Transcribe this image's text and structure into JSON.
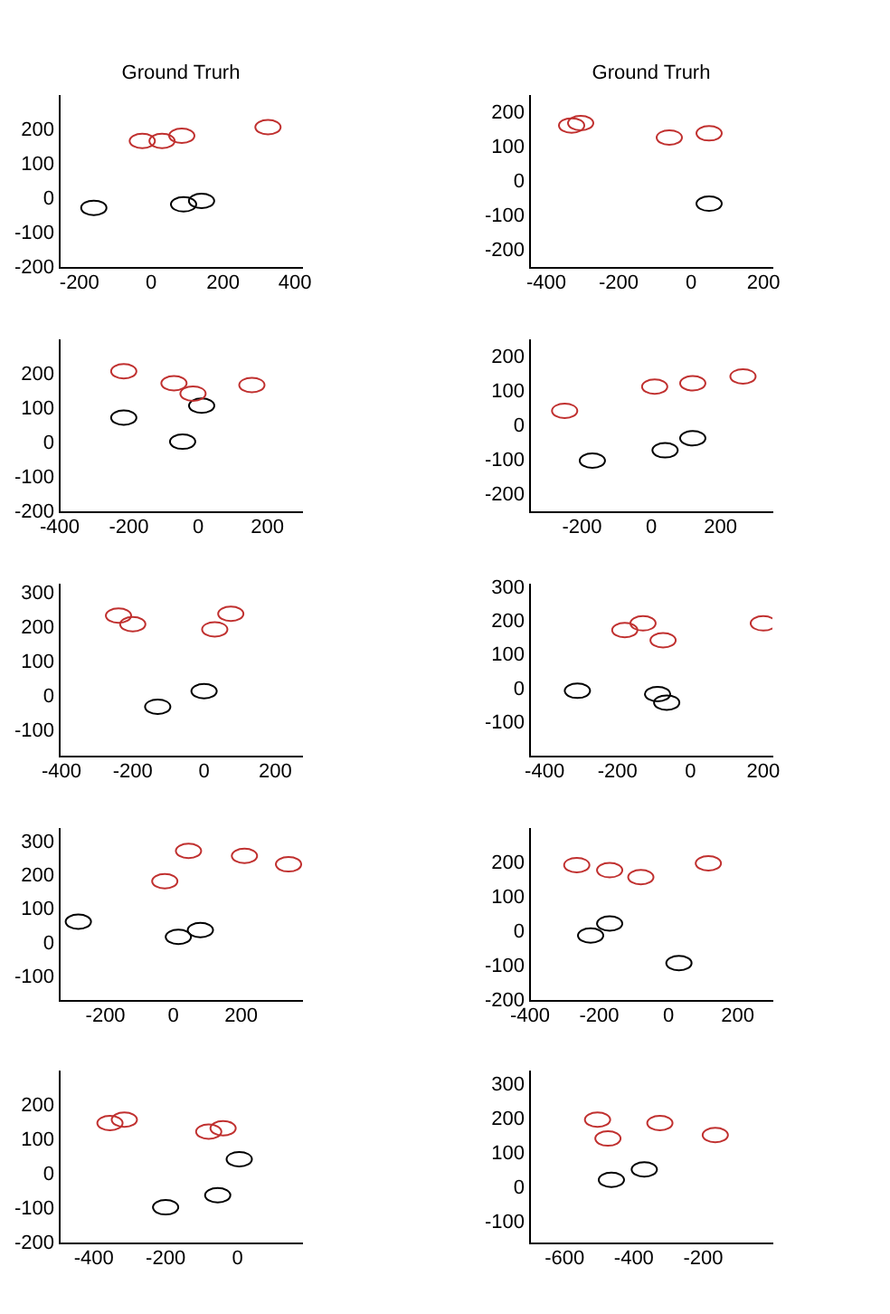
{
  "chart_data": [
    {
      "type": "scatter",
      "title": "Ground Trurh",
      "xlim": [
        -255,
        420
      ],
      "xticks": [
        -200,
        0,
        200,
        400
      ],
      "ylim": [
        -200,
        300
      ],
      "yticks": [
        -200,
        -100,
        0,
        100,
        200
      ],
      "grid": false,
      "legend": false,
      "marker": "circle",
      "series": [
        {
          "color": "#c0302f",
          "x": [
            -25,
            30,
            85,
            325
          ],
          "values": [
            170,
            170,
            185,
            210
          ]
        },
        {
          "color": "#000000",
          "x": [
            -160,
            90,
            140
          ],
          "values": [
            -25,
            -15,
            -5
          ]
        }
      ]
    },
    {
      "type": "scatter",
      "title": "Ground Trurh",
      "xlim": [
        -445,
        225
      ],
      "xticks": [
        -400,
        -200,
        0,
        200
      ],
      "ylim": [
        -250,
        250
      ],
      "yticks": [
        -200,
        -100,
        0,
        100,
        200
      ],
      "grid": false,
      "legend": false,
      "marker": "circle",
      "series": [
        {
          "color": "#c0302f",
          "x": [
            -330,
            -305,
            -60,
            50
          ],
          "values": [
            165,
            172,
            130,
            142
          ]
        },
        {
          "color": "#000000",
          "x": [
            50
          ],
          "values": [
            -63
          ]
        }
      ]
    },
    {
      "type": "scatter",
      "xlim": [
        -400,
        300
      ],
      "xticks": [
        -400,
        -200,
        0,
        200
      ],
      "ylim": [
        -200,
        300
      ],
      "yticks": [
        -200,
        -100,
        0,
        100,
        200
      ],
      "grid": false,
      "legend": false,
      "marker": "circle",
      "series": [
        {
          "color": "#c0302f",
          "x": [
            -215,
            -70,
            -15,
            155
          ],
          "values": [
            210,
            175,
            145,
            170
          ]
        },
        {
          "color": "#000000",
          "x": [
            -215,
            10,
            -45
          ],
          "values": [
            75,
            110,
            5
          ]
        }
      ]
    },
    {
      "type": "scatter",
      "xlim": [
        -350,
        350
      ],
      "xticks": [
        -200,
        0,
        200
      ],
      "ylim": [
        -250,
        250
      ],
      "yticks": [
        -200,
        -100,
        0,
        100,
        200
      ],
      "grid": false,
      "legend": false,
      "marker": "circle",
      "series": [
        {
          "color": "#c0302f",
          "x": [
            -250,
            10,
            120,
            265
          ],
          "values": [
            45,
            115,
            125,
            145
          ]
        },
        {
          "color": "#000000",
          "x": [
            -170,
            40,
            120
          ],
          "values": [
            -100,
            -70,
            -35
          ]
        }
      ]
    },
    {
      "type": "scatter",
      "xlim": [
        -405,
        275
      ],
      "xticks": [
        -400,
        -200,
        0,
        200
      ],
      "ylim": [
        -175,
        325
      ],
      "yticks": [
        -100,
        0,
        100,
        200,
        300
      ],
      "grid": false,
      "legend": false,
      "marker": "circle",
      "series": [
        {
          "color": "#c0302f",
          "x": [
            -240,
            -200,
            30,
            75
          ],
          "values": [
            235,
            210,
            195,
            240
          ]
        },
        {
          "color": "#000000",
          "x": [
            -130,
            0
          ],
          "values": [
            -30,
            15
          ]
        }
      ]
    },
    {
      "type": "scatter",
      "xlim": [
        -440,
        225
      ],
      "xticks": [
        -400,
        -200,
        0,
        200
      ],
      "ylim": [
        -200,
        310
      ],
      "yticks": [
        -100,
        0,
        100,
        200,
        300
      ],
      "grid": false,
      "legend": false,
      "marker": "circle",
      "series": [
        {
          "color": "#c0302f",
          "x": [
            -180,
            -130,
            -75,
            200
          ],
          "values": [
            175,
            195,
            145,
            195
          ]
        },
        {
          "color": "#000000",
          "x": [
            -310,
            -90,
            -65
          ],
          "values": [
            -5,
            -15,
            -40
          ]
        }
      ]
    },
    {
      "type": "scatter",
      "xlim": [
        -335,
        380
      ],
      "xticks": [
        -200,
        0,
        200
      ],
      "ylim": [
        -170,
        340
      ],
      "yticks": [
        -100,
        0,
        100,
        200,
        300
      ],
      "grid": false,
      "legend": false,
      "marker": "circle",
      "series": [
        {
          "color": "#c0302f",
          "x": [
            -25,
            45,
            210,
            340
          ],
          "values": [
            185,
            275,
            260,
            235
          ]
        },
        {
          "color": "#000000",
          "x": [
            -280,
            15,
            80
          ],
          "values": [
            65,
            20,
            40
          ]
        }
      ]
    },
    {
      "type": "scatter",
      "xlim": [
        -400,
        300
      ],
      "xticks": [
        -400,
        -200,
        0,
        200
      ],
      "ylim": [
        -200,
        300
      ],
      "yticks": [
        -200,
        -100,
        0,
        100,
        200
      ],
      "grid": false,
      "legend": false,
      "marker": "circle",
      "series": [
        {
          "color": "#c0302f",
          "x": [
            -265,
            -170,
            -80,
            115
          ],
          "values": [
            195,
            180,
            160,
            200
          ]
        },
        {
          "color": "#000000",
          "x": [
            -225,
            -170,
            30
          ],
          "values": [
            -10,
            25,
            -90
          ]
        }
      ]
    },
    {
      "type": "scatter",
      "xlim": [
        -495,
        180
      ],
      "xticks": [
        -400,
        -200,
        0
      ],
      "ylim": [
        -200,
        300
      ],
      "yticks": [
        -200,
        -100,
        0,
        100,
        200
      ],
      "grid": false,
      "legend": false,
      "marker": "circle",
      "series": [
        {
          "color": "#c0302f",
          "x": [
            -355,
            -315,
            -80,
            -40
          ],
          "values": [
            150,
            160,
            125,
            135
          ]
        },
        {
          "color": "#000000",
          "x": [
            5,
            -200,
            -55
          ],
          "values": [
            45,
            -95,
            -60
          ]
        }
      ]
    },
    {
      "type": "scatter",
      "xlim": [
        -700,
        0
      ],
      "xticks": [
        -600,
        -400,
        -200
      ],
      "ylim": [
        -160,
        340
      ],
      "yticks": [
        -100,
        0,
        100,
        200,
        300
      ],
      "grid": false,
      "legend": false,
      "marker": "circle",
      "series": [
        {
          "color": "#c0302f",
          "x": [
            -505,
            -475,
            -325,
            -165
          ],
          "values": [
            200,
            145,
            190,
            155
          ]
        },
        {
          "color": "#000000",
          "x": [
            -465,
            -370
          ],
          "values": [
            25,
            55
          ]
        }
      ]
    }
  ]
}
